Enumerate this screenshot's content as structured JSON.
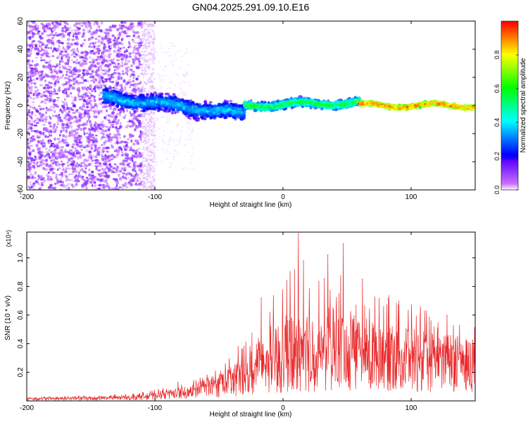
{
  "title": "GN04.2025.291.09.10.E16",
  "colors": {
    "snr_line": "#e8282a",
    "axis": "#000000"
  },
  "chart_data": [
    {
      "type": "heatmap",
      "xlabel": "Height of straight line (km)",
      "ylabel": "Frequency (Hz)",
      "xlim": [
        -200,
        150
      ],
      "ylim": [
        -60,
        60
      ],
      "xticks": [
        -200,
        -100,
        0,
        100
      ],
      "xtick_labels": [
        "-200",
        "-100",
        "0",
        "100"
      ],
      "yticks": [
        -60,
        -40,
        -20,
        0,
        20,
        40,
        60
      ],
      "ytick_labels": [
        "-60",
        "-40",
        "-20",
        "0",
        "20",
        "40",
        "60"
      ],
      "colorbar": {
        "label": "Normalized spectral amplitude",
        "range": [
          0,
          1
        ],
        "ticks": [
          0.0,
          0.2,
          0.4,
          0.6,
          0.8
        ],
        "tick_labels": [
          "0.0",
          "0.2",
          "0.4",
          "0.6",
          "0.8"
        ]
      },
      "regions": [
        {
          "name": "noise-field",
          "x_range": [
            -200,
            -110
          ],
          "y_range": [
            -60,
            60
          ],
          "density": "high",
          "amplitude": [
            0.02,
            0.15
          ]
        },
        {
          "name": "signal-band-early",
          "x_range": [
            -140,
            -30
          ],
          "center_hz": [
            6,
            -6
          ],
          "width_hz": 16,
          "amplitude": [
            0.1,
            0.45
          ]
        },
        {
          "name": "signal-band-mid",
          "x_range": [
            -30,
            60
          ],
          "center_hz": [
            0,
            2
          ],
          "width_hz": 8,
          "amplitude": [
            0.2,
            0.7
          ]
        },
        {
          "name": "signal-band-late",
          "x_range": [
            60,
            150
          ],
          "center_hz": [
            0,
            0
          ],
          "width_hz": 4,
          "amplitude": [
            0.6,
            1.0
          ]
        }
      ]
    },
    {
      "type": "line",
      "xlabel": "Height of straight line (km)",
      "ylabel": "SNR (10 * v/v)",
      "scale_label": "(x10⁴)",
      "xlim": [
        -200,
        150
      ],
      "ylim": [
        0,
        1.18
      ],
      "xticks": [
        -200,
        -100,
        0,
        100
      ],
      "xtick_labels": [
        "-200",
        "-100",
        "0",
        "100"
      ],
      "yticks": [
        0.2,
        0.4,
        0.6,
        0.8,
        1.0
      ],
      "ytick_labels": [
        "0.2",
        "0.4",
        "0.6",
        "0.8",
        "1.0"
      ],
      "series": [
        {
          "name": "SNR",
          "envelope_x": [
            -200,
            -150,
            -120,
            -100,
            -90,
            -80,
            -70,
            -60,
            -50,
            -40,
            -30,
            -20,
            -10,
            0,
            10,
            20,
            30,
            40,
            50,
            60,
            70,
            80,
            90,
            100,
            110,
            120,
            130,
            140,
            150
          ],
          "envelope_base": [
            0.015,
            0.02,
            0.025,
            0.04,
            0.05,
            0.06,
            0.08,
            0.1,
            0.12,
            0.15,
            0.18,
            0.22,
            0.25,
            0.27,
            0.3,
            0.3,
            0.32,
            0.33,
            0.32,
            0.33,
            0.32,
            0.32,
            0.32,
            0.32,
            0.3,
            0.3,
            0.32,
            0.3,
            0.3
          ],
          "envelope_peak": [
            0.03,
            0.04,
            0.05,
            0.08,
            0.1,
            0.12,
            0.15,
            0.2,
            0.25,
            0.33,
            0.42,
            0.65,
            0.72,
            0.82,
            1.0,
            0.9,
            0.85,
            0.98,
            0.85,
            0.8,
            0.78,
            0.75,
            0.72,
            0.7,
            0.65,
            0.6,
            0.58,
            0.56,
            0.52
          ],
          "peaks": [
            {
              "x": -82,
              "y": 0.13
            },
            {
              "x": -35,
              "y": 0.38
            },
            {
              "x": -17,
              "y": 0.72
            },
            {
              "x": 3,
              "y": 0.84
            },
            {
              "x": 12,
              "y": 1.17
            },
            {
              "x": 16,
              "y": 0.98
            },
            {
              "x": 35,
              "y": 1.02
            },
            {
              "x": 47,
              "y": 1.1
            },
            {
              "x": 62,
              "y": 0.85
            },
            {
              "x": 90,
              "y": 0.67
            },
            {
              "x": 128,
              "y": 0.6
            }
          ]
        }
      ]
    }
  ]
}
